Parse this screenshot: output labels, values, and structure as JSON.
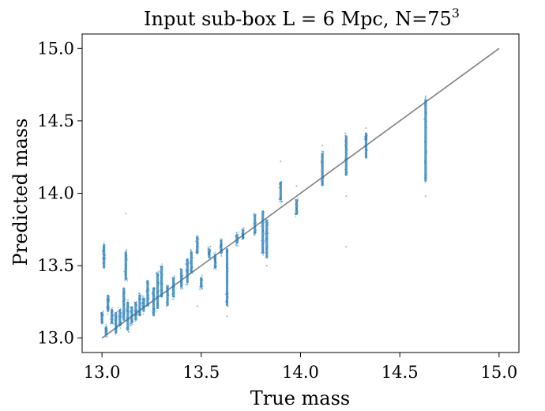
{
  "chart_data": {
    "type": "scatter",
    "title": "Input sub-box L = 6  Mpc, N=75",
    "title_superscript": "3",
    "xlabel": "True mass",
    "ylabel": "Predicted mass",
    "xlim": [
      12.9,
      15.1
    ],
    "ylim": [
      12.9,
      15.1
    ],
    "xticks": [
      "13.0",
      "13.5",
      "14.0",
      "14.5",
      "15.0"
    ],
    "yticks": [
      "13.0",
      "13.5",
      "14.0",
      "14.5",
      "15.0"
    ],
    "grid": false,
    "point_color": "#1f77b4",
    "reference_line": {
      "color": "#808080",
      "x": [
        13.0,
        15.0
      ],
      "y": [
        13.0,
        15.0
      ]
    },
    "clusters": [
      {
        "x": 13.0,
        "y_min": 13.1,
        "y_max": 13.18
      },
      {
        "x": 13.01,
        "y_min": 13.48,
        "y_max": 13.65
      },
      {
        "x": 13.02,
        "y_min": 13.02,
        "y_max": 13.08
      },
      {
        "x": 13.03,
        "y_min": 13.18,
        "y_max": 13.3
      },
      {
        "x": 13.05,
        "y_min": 13.1,
        "y_max": 13.2
      },
      {
        "x": 13.07,
        "y_min": 13.03,
        "y_max": 13.18
      },
      {
        "x": 13.09,
        "y_min": 13.08,
        "y_max": 13.2
      },
      {
        "x": 13.11,
        "y_min": 13.12,
        "y_max": 13.35
      },
      {
        "x": 13.12,
        "y_min": 13.4,
        "y_max": 13.6
      },
      {
        "x": 13.13,
        "y_min": 13.05,
        "y_max": 13.25
      },
      {
        "x": 13.15,
        "y_min": 13.1,
        "y_max": 13.22
      },
      {
        "x": 13.17,
        "y_min": 13.12,
        "y_max": 13.25
      },
      {
        "x": 13.19,
        "y_min": 13.15,
        "y_max": 13.3
      },
      {
        "x": 13.21,
        "y_min": 13.18,
        "y_max": 13.28
      },
      {
        "x": 13.23,
        "y_min": 13.22,
        "y_max": 13.4
      },
      {
        "x": 13.26,
        "y_min": 13.15,
        "y_max": 13.35
      },
      {
        "x": 13.28,
        "y_min": 13.2,
        "y_max": 13.45
      },
      {
        "x": 13.3,
        "y_min": 13.28,
        "y_max": 13.5
      },
      {
        "x": 13.33,
        "y_min": 13.22,
        "y_max": 13.36
      },
      {
        "x": 13.36,
        "y_min": 13.28,
        "y_max": 13.42
      },
      {
        "x": 13.4,
        "y_min": 13.35,
        "y_max": 13.48
      },
      {
        "x": 13.43,
        "y_min": 13.38,
        "y_max": 13.55
      },
      {
        "x": 13.45,
        "y_min": 13.45,
        "y_max": 13.6
      },
      {
        "x": 13.48,
        "y_min": 13.58,
        "y_max": 13.7
      },
      {
        "x": 13.5,
        "y_min": 13.35,
        "y_max": 13.42
      },
      {
        "x": 13.54,
        "y_min": 13.55,
        "y_max": 13.62
      },
      {
        "x": 13.57,
        "y_min": 13.48,
        "y_max": 13.58
      },
      {
        "x": 13.6,
        "y_min": 13.58,
        "y_max": 13.68
      },
      {
        "x": 13.63,
        "y_min": 13.22,
        "y_max": 13.62
      },
      {
        "x": 13.68,
        "y_min": 13.65,
        "y_max": 13.72
      },
      {
        "x": 13.71,
        "y_min": 13.68,
        "y_max": 13.75
      },
      {
        "x": 13.77,
        "y_min": 13.72,
        "y_max": 13.85
      },
      {
        "x": 13.81,
        "y_min": 13.58,
        "y_max": 13.88
      },
      {
        "x": 13.83,
        "y_min": 13.55,
        "y_max": 13.82
      },
      {
        "x": 13.9,
        "y_min": 13.95,
        "y_max": 14.08
      },
      {
        "x": 13.98,
        "y_min": 13.85,
        "y_max": 13.96
      },
      {
        "x": 14.11,
        "y_min": 14.05,
        "y_max": 14.28
      },
      {
        "x": 14.23,
        "y_min": 14.12,
        "y_max": 14.4
      },
      {
        "x": 14.33,
        "y_min": 14.24,
        "y_max": 14.42
      },
      {
        "x": 14.63,
        "y_min": 14.08,
        "y_max": 14.65
      }
    ],
    "outliers": [
      {
        "x": 13.12,
        "y": 13.86
      },
      {
        "x": 13.9,
        "y": 14.22
      },
      {
        "x": 13.98,
        "y": 14.05
      },
      {
        "x": 14.11,
        "y": 14.33
      },
      {
        "x": 14.23,
        "y": 13.63
      },
      {
        "x": 14.23,
        "y": 13.98
      },
      {
        "x": 14.33,
        "y": 14.45
      },
      {
        "x": 14.63,
        "y": 13.98
      },
      {
        "x": 14.63,
        "y": 14.67
      },
      {
        "x": 13.63,
        "y": 13.15
      },
      {
        "x": 13.83,
        "y": 13.5
      },
      {
        "x": 13.48,
        "y": 13.22
      }
    ]
  }
}
